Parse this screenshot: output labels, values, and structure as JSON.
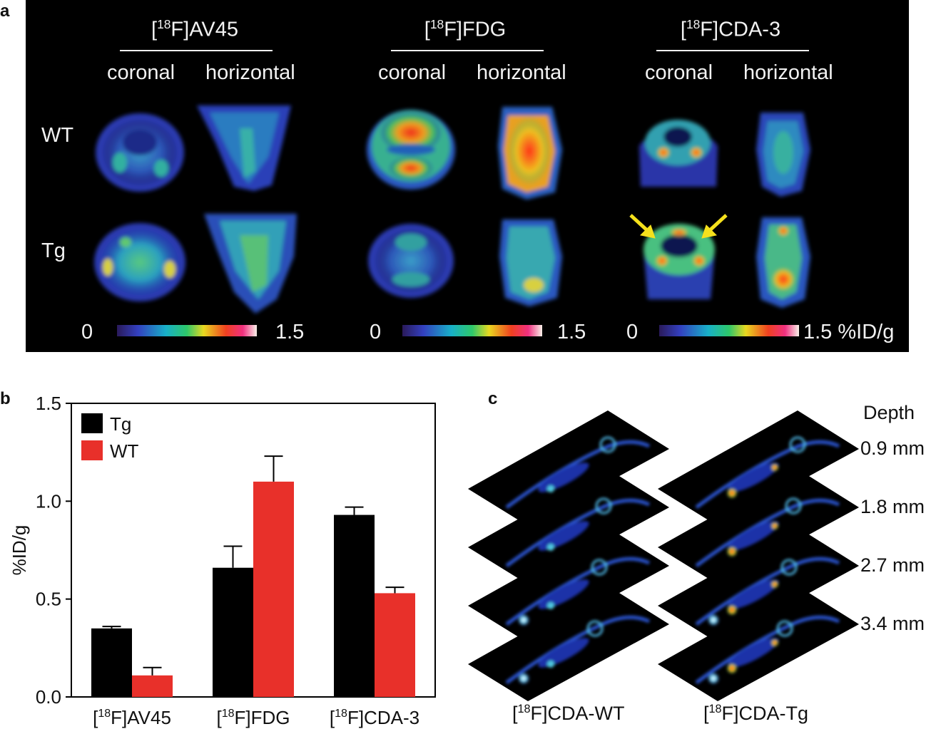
{
  "panel_a": {
    "letter": "a",
    "tracers": [
      {
        "pre": "[",
        "sup": "18",
        "post": "F]AV45"
      },
      {
        "pre": "[",
        "sup": "18",
        "post": "F]FDG"
      },
      {
        "pre": "[",
        "sup": "18",
        "post": "F]CDA-3"
      }
    ],
    "views": [
      "coronal",
      "horizontal"
    ],
    "rows": [
      "WT",
      "Tg"
    ],
    "colorbars": [
      {
        "min": "0",
        "max": "1.5"
      },
      {
        "min": "0",
        "max": "1.5"
      },
      {
        "min": "0",
        "max": "1.5 %ID/g"
      }
    ],
    "arrow_color": "#f5e11c"
  },
  "panel_b": {
    "letter": "b"
  },
  "chart_data": {
    "type": "bar",
    "categories": [
      {
        "pre": "[",
        "sup": "18",
        "post": "F]AV45"
      },
      {
        "pre": "[",
        "sup": "18",
        "post": "F]FDG"
      },
      {
        "pre": "[",
        "sup": "18",
        "post": "F]CDA-3"
      }
    ],
    "series": [
      {
        "name": "Tg",
        "color": "#000000",
        "values": [
          0.35,
          0.66,
          0.93
        ],
        "errors": [
          0.01,
          0.11,
          0.04
        ]
      },
      {
        "name": "WT",
        "color": "#e8302a",
        "values": [
          0.11,
          1.1,
          0.53
        ],
        "errors": [
          0.04,
          0.13,
          0.03
        ]
      }
    ],
    "ylabel": "%ID/g",
    "ylim": [
      0.0,
      1.5
    ],
    "yticks": [
      "0.0",
      "0.5",
      "1.0",
      "1.5"
    ],
    "legend": "top-left",
    "grid": false
  },
  "panel_c": {
    "letter": "c",
    "depth_title": "Depth",
    "depths": [
      "0.9 mm",
      "1.8 mm",
      "2.7 mm",
      "3.4 mm"
    ],
    "columns": [
      {
        "pre": "[",
        "sup": "18",
        "post": "F]CDA-WT"
      },
      {
        "pre": "[",
        "sup": "18",
        "post": "F]CDA-Tg"
      }
    ]
  }
}
